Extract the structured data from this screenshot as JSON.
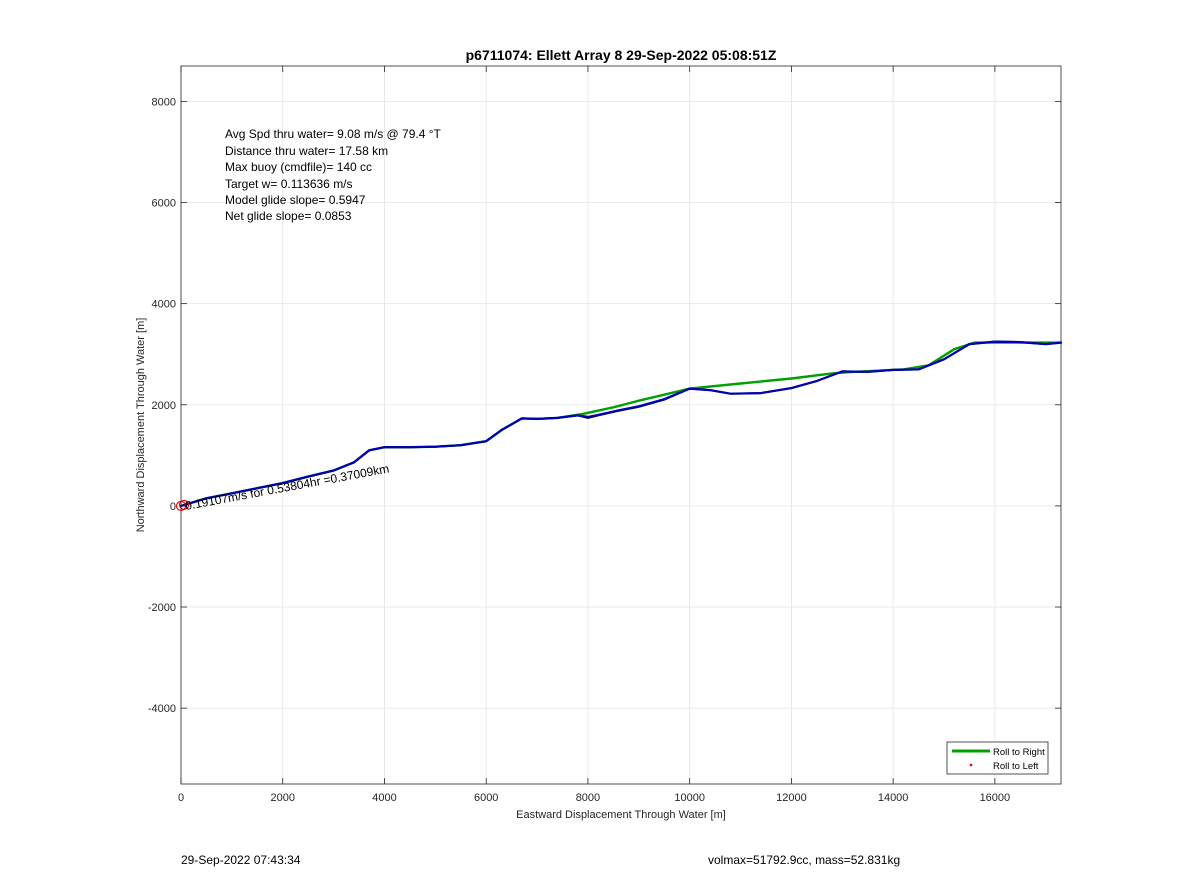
{
  "chart_data": {
    "type": "line",
    "title": "p6711074: Ellett Array 8 29-Sep-2022 05:08:51Z",
    "xlabel": "Eastward Displacement Through Water [m]",
    "ylabel": "Northward Displacement Through Water [m]",
    "xlim": [
      0,
      17300
    ],
    "ylim": [
      -5500,
      8700
    ],
    "xticks": [
      0,
      2000,
      4000,
      6000,
      8000,
      10000,
      12000,
      14000,
      16000
    ],
    "yticks": [
      -4000,
      -2000,
      0,
      2000,
      4000,
      6000,
      8000
    ],
    "xtick_labels": [
      "0",
      "2000",
      "4000",
      "6000",
      "8000",
      "10000",
      "12000",
      "14000",
      "16000"
    ],
    "ytick_labels": [
      "-4000",
      "-2000",
      "0",
      "2000",
      "4000",
      "6000",
      "8000"
    ],
    "grid": true,
    "legend_placement": "bottom-right",
    "legend": [
      {
        "label": "Roll to Right",
        "color": "#00a000",
        "style": "line"
      },
      {
        "label": "Roll to Left",
        "color": "#e00000",
        "style": "dot"
      }
    ],
    "annotations": [
      "Avg Spd thru water=  9.08 m/s @  79.4 °T",
      "Distance thru water= 17.58 km",
      "Max buoy (cmdfile)= 140 cc",
      "Target w= 0.113636 m/s",
      "Model glide slope= 0.5947",
      "Net glide slope= 0.0853"
    ],
    "track_label": "0.19107m/s for 0.53804hr =0.37009km",
    "series": [
      {
        "color": "#00a000",
        "x": [
          0,
          500,
          1000,
          1500,
          2000,
          2500,
          3000,
          3400,
          3700,
          4000,
          4500,
          5000,
          5500,
          6000,
          6300,
          6700,
          7000,
          7400,
          7900,
          8500,
          9000,
          9500,
          10000,
          11000,
          12000,
          12800,
          13200,
          13800,
          14200,
          14700,
          15200,
          15600,
          16000,
          16500,
          17300
        ],
        "y": [
          0,
          150,
          250,
          350,
          450,
          580,
          700,
          860,
          1100,
          1160,
          1160,
          1170,
          1200,
          1280,
          1500,
          1730,
          1720,
          1740,
          1820,
          1950,
          2080,
          2200,
          2320,
          2420,
          2520,
          2620,
          2650,
          2680,
          2700,
          2780,
          3100,
          3230,
          3230,
          3230,
          3230
        ]
      },
      {
        "color": "#000000",
        "x": [
          0,
          500,
          1000,
          1500,
          2000,
          2500,
          3000,
          3400,
          3700,
          4000,
          4500,
          5000,
          5500,
          6000,
          6300,
          6700,
          7000,
          7400,
          7800,
          8000,
          8200,
          8600,
          9000,
          9500,
          10000,
          10400,
          10800,
          11400,
          12000,
          12500,
          13000,
          13500,
          14000,
          14500,
          15000,
          15500,
          16000,
          16500,
          17000,
          17300
        ],
        "y": [
          0,
          150,
          250,
          350,
          450,
          580,
          700,
          860,
          1100,
          1160,
          1160,
          1170,
          1200,
          1280,
          1500,
          1730,
          1720,
          1740,
          1790,
          1740,
          1790,
          1880,
          1960,
          2100,
          2320,
          2290,
          2220,
          2230,
          2330,
          2470,
          2660,
          2650,
          2690,
          2700,
          2900,
          3200,
          3250,
          3240,
          3200,
          3230
        ]
      },
      {
        "color": "#0000b4",
        "x": [
          0,
          500,
          1000,
          1500,
          2000,
          2500,
          3000,
          3400,
          3700,
          4000,
          4500,
          5000,
          5500,
          6000,
          6300,
          6700,
          7000,
          7400,
          7800,
          8000,
          8200,
          8600,
          9000,
          9500,
          10000,
          10400,
          10800,
          11400,
          12000,
          12500,
          13000,
          13500,
          14000,
          14500,
          15000,
          15500,
          16000,
          16500,
          17000,
          17300
        ],
        "y": [
          0,
          150,
          250,
          350,
          450,
          580,
          700,
          860,
          1100,
          1160,
          1160,
          1170,
          1200,
          1280,
          1500,
          1730,
          1720,
          1740,
          1790,
          1760,
          1800,
          1890,
          1970,
          2110,
          2320,
          2290,
          2220,
          2230,
          2330,
          2470,
          2660,
          2650,
          2690,
          2700,
          2900,
          3200,
          3250,
          3240,
          3200,
          3230
        ]
      }
    ],
    "start_points": [
      {
        "x": 0,
        "y": 0
      },
      {
        "x": 60,
        "y": 20
      }
    ]
  },
  "footer": {
    "left": "29-Sep-2022 07:43:34",
    "right": "volmax=51792.9cc, mass=52.831kg"
  }
}
